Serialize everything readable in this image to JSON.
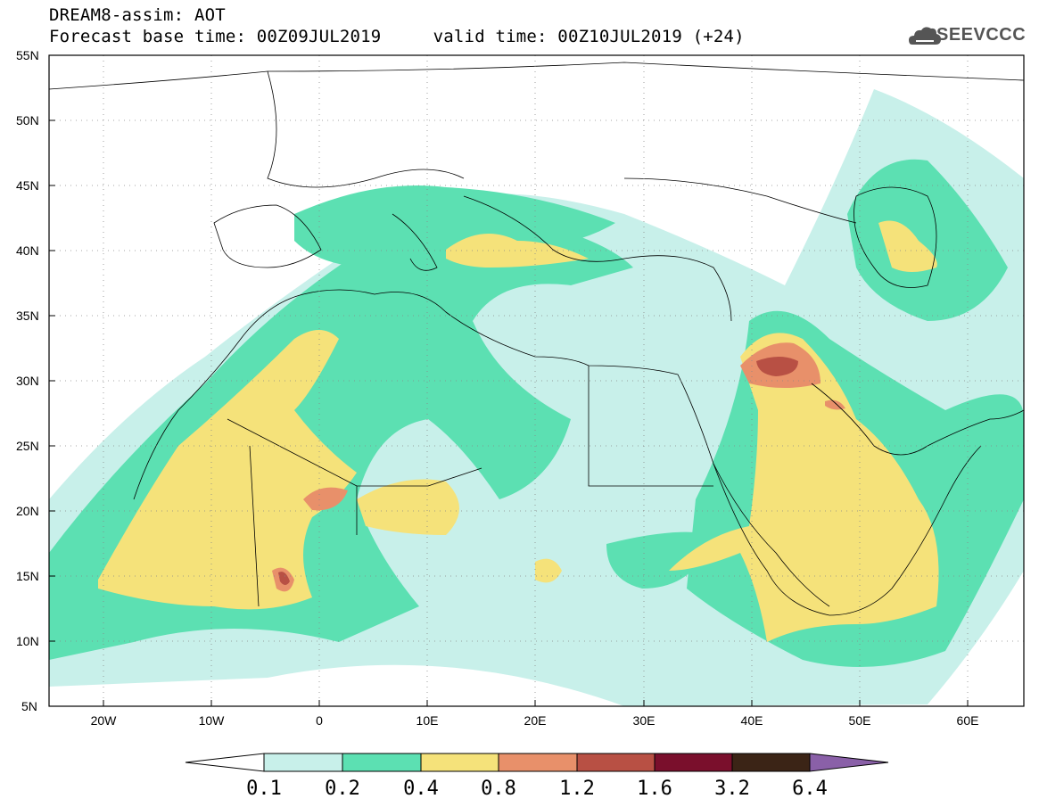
{
  "header": {
    "model": "DREAM8-assim: AOT",
    "forecast_line": "Forecast base time: 00Z09JUL2019     valid time: 00Z10JUL2019 (+24)"
  },
  "logo": {
    "text": "SEEVCCC",
    "icon": "cloud-icon"
  },
  "map": {
    "region": "North Africa, Europe, Middle East",
    "lon_range": [
      -25,
      65
    ],
    "lat_range": [
      5,
      55
    ],
    "lat_labels": [
      "55N",
      "50N",
      "45N",
      "40N",
      "35N",
      "30N",
      "25N",
      "20N",
      "15N",
      "10N",
      "5N"
    ],
    "lon_labels": [
      "20W",
      "10W",
      "0",
      "10E",
      "20E",
      "30E",
      "40E",
      "50E",
      "60E"
    ],
    "grid": "dotted"
  },
  "colorbar": {
    "levels": [
      "0.1",
      "0.2",
      "0.4",
      "0.8",
      "1.2",
      "1.6",
      "3.2",
      "6.4"
    ],
    "colors": [
      "#ffffff",
      "#c8f0ea",
      "#5ce0b2",
      "#f5e27a",
      "#e8906a",
      "#b85044",
      "#7a0f2c",
      "#3b2416",
      "#8a60a8"
    ]
  }
}
